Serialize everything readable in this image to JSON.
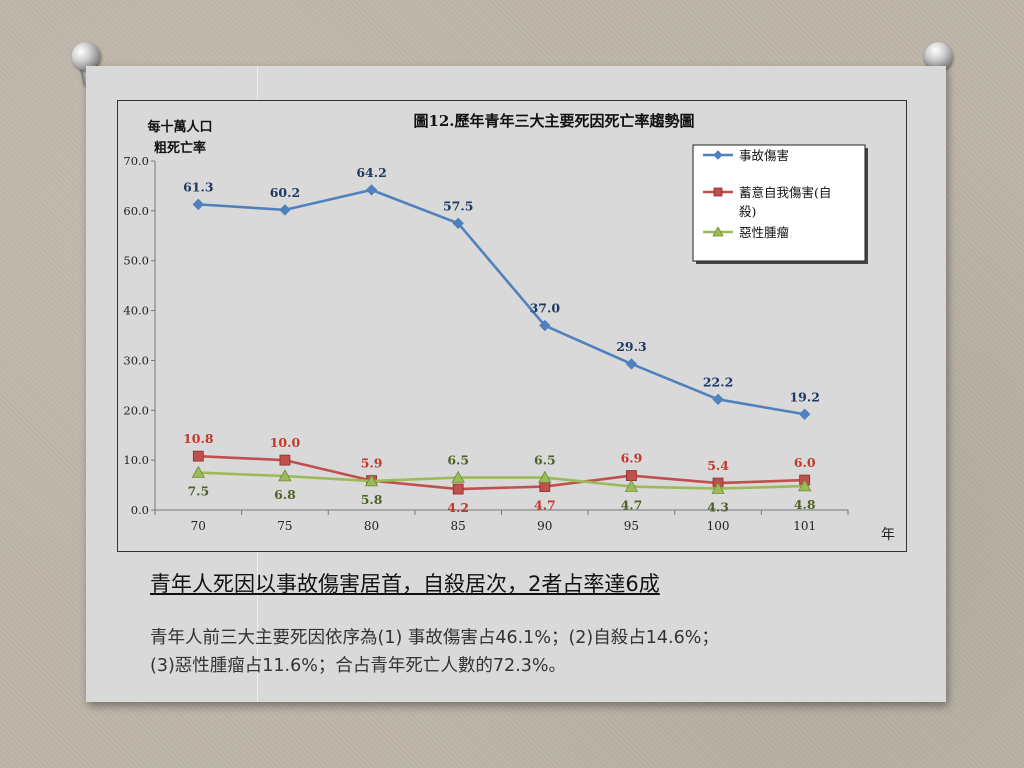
{
  "slide": {
    "headline": "青年人死因以事故傷害居首，自殺居次，2者占率達6成",
    "body_lines": [
      "青年人前三大主要死因依序為(1) 事故傷害占46.1%；(2)自殺占14.6%；",
      "(3)惡性腫瘤占11.6%；合占青年死亡人數的72.3%。"
    ]
  },
  "chart_data": {
    "type": "line",
    "title": "圖12.歷年青年三大主要死因死亡率趨勢圖",
    "ylabel_lines": [
      "每十萬人口",
      "粗死亡率"
    ],
    "xlabel": "年",
    "categories": [
      "70",
      "75",
      "80",
      "85",
      "90",
      "95",
      "100",
      "101"
    ],
    "ylim": [
      0,
      70
    ],
    "yticks": [
      "0.0",
      "10.0",
      "20.0",
      "30.0",
      "40.0",
      "50.0",
      "60.0",
      "70.0"
    ],
    "legend_position": "top-right",
    "grid": false,
    "series": [
      {
        "name": "事故傷害",
        "marker": "diamond",
        "color": "#4f81bd",
        "label_color": "#1f3864",
        "values": [
          61.3,
          60.2,
          64.2,
          57.5,
          37.0,
          29.3,
          22.2,
          19.2
        ],
        "labels": [
          "61.3",
          "60.2",
          "64.2",
          "57.5",
          "37.0",
          "29.3",
          "22.2",
          "19.2"
        ],
        "label_side": [
          "above",
          "above",
          "above",
          "above",
          "above",
          "above",
          "above",
          "above"
        ]
      },
      {
        "name": "蓄意自我傷害(自殺)",
        "legend_lines": [
          "蓄意自我傷害(自",
          "殺)"
        ],
        "marker": "square",
        "color": "#c0504d",
        "label_color": "#c0392b",
        "values": [
          10.8,
          10.0,
          5.9,
          4.2,
          4.7,
          6.9,
          5.4,
          6.0
        ],
        "labels": [
          "10.8",
          "10.0",
          "5.9",
          "4.2",
          "4.7",
          "6.9",
          "5.4",
          "6.0"
        ],
        "label_side": [
          "above",
          "above",
          "above",
          "below",
          "below",
          "above",
          "above",
          "above"
        ]
      },
      {
        "name": "惡性腫瘤",
        "marker": "triangle",
        "color": "#9bbb59",
        "label_color": "#4f6228",
        "values": [
          7.5,
          6.8,
          5.8,
          6.5,
          6.5,
          4.7,
          4.3,
          4.8
        ],
        "labels": [
          "7.5",
          "6.8",
          "5.8",
          "6.5",
          "6.5",
          "4.7",
          "4.3",
          "4.8"
        ],
        "label_side": [
          "below",
          "below",
          "below",
          "above",
          "above",
          "below",
          "below",
          "below"
        ]
      }
    ]
  }
}
